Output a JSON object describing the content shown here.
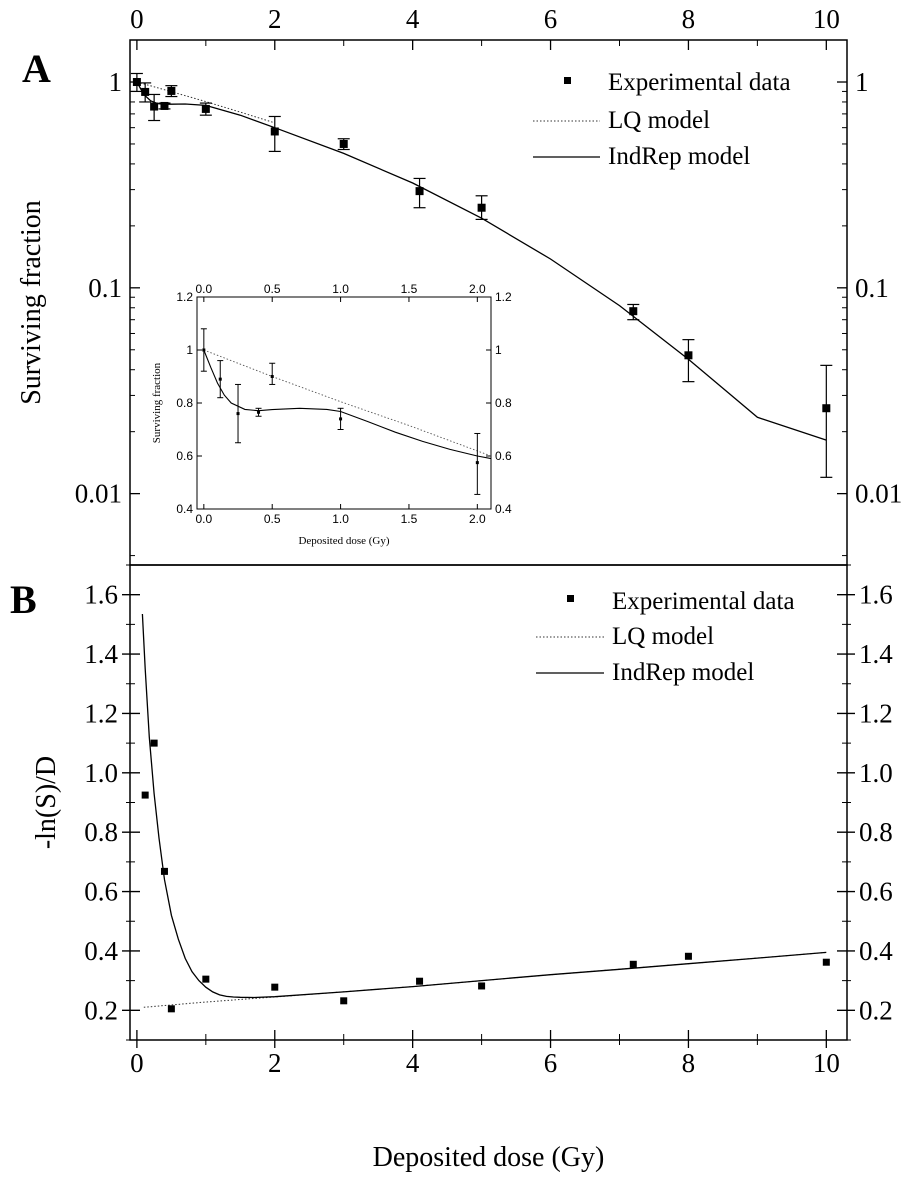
{
  "panels": {
    "A": {
      "letter": "A"
    },
    "B": {
      "letter": "B"
    },
    "xlabel": "Deposited dose (Gy)"
  },
  "legend": {
    "experimental": "Experimental data",
    "lq": "LQ model",
    "indrep": "IndRep model"
  },
  "chart_data": [
    {
      "type": "scatter",
      "panel": "A",
      "xlabel": "",
      "ylabel": "Surviving fraction",
      "xlim": [
        -0.1,
        10.3
      ],
      "ylim": [
        0.0045,
        1.6
      ],
      "yscale": "log",
      "xticks": [
        0,
        2,
        4,
        6,
        8,
        10
      ],
      "yticks": [
        0.01,
        0.1,
        1
      ],
      "ytick_labels": [
        "0.01",
        "0.1",
        "1"
      ],
      "legend_position": "top-right",
      "series": [
        {
          "name": "Experimental data",
          "x": [
            0,
            0.12,
            0.25,
            0.4,
            0.5,
            1.0,
            2.0,
            3.0,
            4.1,
            5.0,
            7.2,
            8.0,
            10.0
          ],
          "y": [
            1.0,
            0.895,
            0.76,
            0.765,
            0.905,
            0.74,
            0.575,
            0.5,
            0.295,
            0.245,
            0.077,
            0.047,
            0.026
          ],
          "yerr_low": [
            0.9,
            0.8,
            0.65,
            0.74,
            0.85,
            0.69,
            0.46,
            0.47,
            0.245,
            0.215,
            0.07,
            0.035,
            0.012
          ],
          "yerr_high": [
            1.1,
            0.99,
            0.87,
            0.79,
            0.96,
            0.79,
            0.68,
            0.53,
            0.34,
            0.28,
            0.083,
            0.056,
            0.042
          ]
        },
        {
          "name": "LQ model",
          "x": [
            0,
            0.25,
            0.5,
            0.75,
            1.0,
            1.5,
            2.0
          ],
          "y": [
            1.0,
            0.948,
            0.897,
            0.849,
            0.803,
            0.714,
            0.633
          ]
        },
        {
          "name": "IndRep model",
          "x": [
            0,
            0.1,
            0.2,
            0.3,
            0.4,
            0.5,
            0.7,
            1.0,
            1.5,
            2.0,
            3.0,
            4.0,
            5.0,
            6.0,
            7.0,
            8.0,
            9.0,
            10.0
          ],
          "y": [
            1.0,
            0.87,
            0.81,
            0.785,
            0.78,
            0.78,
            0.782,
            0.77,
            0.69,
            0.6,
            0.45,
            0.323,
            0.218,
            0.138,
            0.082,
            0.045,
            0.0235,
            0.0182
          ]
        }
      ],
      "inset": {
        "type": "scatter",
        "xlabel": "Deposited dose (Gy)",
        "ylabel": "Surviving fraction",
        "xlim": [
          -0.05,
          2.1
        ],
        "ylim": [
          0.4,
          1.2
        ],
        "xticks": [
          0.0,
          0.5,
          1.0,
          1.5,
          2.0
        ],
        "xtick_labels": [
          "0.0",
          "0.5",
          "1.0",
          "1.5",
          "2.0"
        ],
        "yticks": [
          0.4,
          0.6,
          0.8,
          1.0,
          1.2
        ],
        "ytick_labels": [
          "0.4",
          "0.6",
          "0.8",
          "1",
          "1.2"
        ],
        "series": [
          {
            "name": "Experimental data",
            "x": [
              0,
              0.12,
              0.25,
              0.4,
              0.5,
              1.0,
              2.0
            ],
            "y": [
              1.0,
              0.89,
              0.76,
              0.765,
              0.9,
              0.74,
              0.575
            ],
            "yerr_low": [
              0.92,
              0.82,
              0.65,
              0.75,
              0.87,
              0.7,
              0.455
            ],
            "yerr_high": [
              1.08,
              0.96,
              0.87,
              0.78,
              0.95,
              0.78,
              0.685
            ]
          },
          {
            "name": "LQ model",
            "x": [
              0,
              0.5,
              1.0,
              1.5,
              2.1
            ],
            "y": [
              1.0,
              0.9,
              0.805,
              0.715,
              0.6
            ]
          },
          {
            "name": "IndRep model",
            "x": [
              0,
              0.05,
              0.1,
              0.15,
              0.2,
              0.3,
              0.4,
              0.5,
              0.7,
              0.9,
              1.0,
              1.2,
              1.4,
              1.6,
              1.8,
              2.0,
              2.1
            ],
            "y": [
              1.0,
              0.935,
              0.875,
              0.83,
              0.8,
              0.776,
              0.771,
              0.775,
              0.78,
              0.776,
              0.768,
              0.73,
              0.69,
              0.655,
              0.625,
              0.6,
              0.59
            ]
          }
        ]
      }
    },
    {
      "type": "scatter",
      "panel": "B",
      "xlabel": "Deposited dose (Gy)",
      "ylabel": "-ln(S)/D",
      "xlim": [
        -0.1,
        10.3
      ],
      "ylim": [
        0.1,
        1.7
      ],
      "xticks": [
        0,
        2,
        4,
        6,
        8,
        10
      ],
      "yticks": [
        0.2,
        0.4,
        0.6,
        0.8,
        1.0,
        1.2,
        1.4,
        1.6
      ],
      "ytick_labels": [
        "0.2",
        "0.4",
        "0.6",
        "0.8",
        "1.0",
        "1.2",
        "1.4",
        "1.6"
      ],
      "legend_position": "top-right",
      "series": [
        {
          "name": "Experimental data",
          "x": [
            0.12,
            0.25,
            0.4,
            0.5,
            1.0,
            2.0,
            3.0,
            4.1,
            5.0,
            7.2,
            8.0,
            10.0
          ],
          "y": [
            0.925,
            1.1,
            0.668,
            0.205,
            0.305,
            0.278,
            0.232,
            0.298,
            0.282,
            0.355,
            0.382,
            0.362
          ]
        },
        {
          "name": "LQ model",
          "x": [
            0.1,
            1.0,
            2.0,
            4.0,
            6.0,
            8.0,
            10.0
          ],
          "y": [
            0.21,
            0.228,
            0.245,
            0.28,
            0.32,
            0.357,
            0.395
          ]
        },
        {
          "name": "IndRep model",
          "x": [
            0.08,
            0.12,
            0.18,
            0.25,
            0.32,
            0.4,
            0.5,
            0.6,
            0.7,
            0.8,
            0.9,
            1.0,
            1.1,
            1.2,
            1.3,
            1.4,
            1.5,
            1.7,
            2.0,
            3.0,
            4.0,
            5.0,
            6.0,
            7.0,
            8.0,
            9.0,
            10.0
          ],
          "y": [
            1.535,
            1.35,
            1.12,
            0.93,
            0.78,
            0.64,
            0.52,
            0.44,
            0.375,
            0.33,
            0.3,
            0.278,
            0.262,
            0.252,
            0.247,
            0.245,
            0.244,
            0.243,
            0.246,
            0.262,
            0.28,
            0.3,
            0.32,
            0.338,
            0.357,
            0.376,
            0.395
          ]
        }
      ]
    }
  ]
}
